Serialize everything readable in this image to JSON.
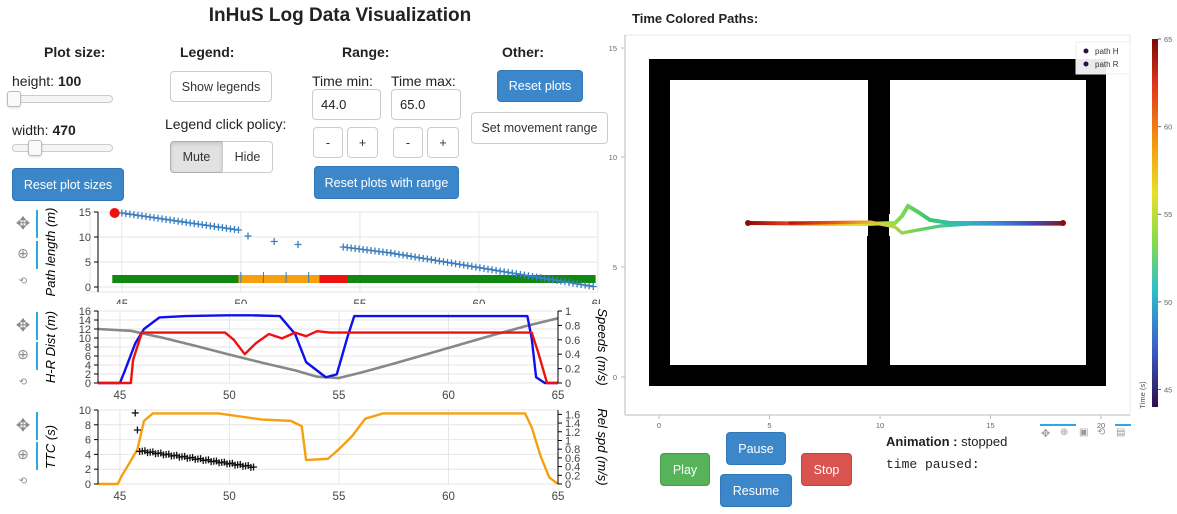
{
  "header": {
    "title": "InHuS Log Data Visualization"
  },
  "plot_size": {
    "label": "Plot size:",
    "height_label": "height: ",
    "height_value": "100",
    "width_label": "width: ",
    "width_value": "470",
    "reset_label": "Reset plot sizes"
  },
  "legend": {
    "label": "Legend:",
    "show_label": "Show legends",
    "policy_label": "Legend click policy:",
    "mute_label": "Mute",
    "hide_label": "Hide"
  },
  "range": {
    "label": "Range:",
    "tmin_label": "Time min:",
    "tmin_value": "44.0",
    "tmax_label": "Time max:",
    "tmax_value": "65.0",
    "minus": "-",
    "plus": "+",
    "reset_label": "Reset plots with range"
  },
  "other": {
    "label": "Other:",
    "reset_label": "Reset plots",
    "movement_label": "Set movement range"
  },
  "paths": {
    "title": "Time Colored Paths:",
    "legend": [
      "path H",
      "path R"
    ],
    "colorbar_label": "Time (s)",
    "colorbar_ticks": [
      "65",
      "60",
      "55",
      "50",
      "45"
    ],
    "colorbar_range": [
      44,
      65
    ],
    "x_ticks": [
      "0",
      "5",
      "10",
      "15",
      "20"
    ],
    "y_ticks": [
      "15",
      "10",
      "5",
      "0"
    ]
  },
  "animation": {
    "label": "Animation : ",
    "status": "stopped",
    "time_label": "time paused:",
    "play": "Play",
    "pause": "Pause",
    "resume": "Resume",
    "stop": "Stop"
  },
  "chart_data": [
    {
      "type": "scatter",
      "ylabel": "Path length (m)",
      "xlim": [
        44,
        65
      ],
      "ylim": [
        -1,
        15
      ],
      "x_ticks": [
        "45",
        "50",
        "55",
        "60",
        "65"
      ],
      "y_ticks": [
        "15",
        "10",
        "5",
        "0"
      ],
      "colors": {
        "points": "#3a7fc0",
        "start": "#ee1111",
        "bar_green": "#118811",
        "bar_orange": "#f5a010",
        "bar_red": "#ee1111"
      },
      "start_marker": {
        "x": 44.7,
        "y": 14.8
      },
      "segments": [
        {
          "x": [
            45.0,
            49.9
          ],
          "y": [
            14.8,
            11.4
          ]
        },
        {
          "x": [
            54.3,
            56.3
          ],
          "y": [
            8.0,
            6.8
          ]
        },
        {
          "x": [
            56.3,
            64.8
          ],
          "y": [
            6.8,
            0.1
          ]
        }
      ],
      "isolated_points": [
        {
          "x": 50.3,
          "y": 10.2
        },
        {
          "x": 51.4,
          "y": 9.1
        },
        {
          "x": 52.4,
          "y": 8.5
        }
      ],
      "status_bar": [
        {
          "from": 44.6,
          "to": 49.9,
          "state": "green"
        },
        {
          "from": 49.9,
          "to": 53.3,
          "state": "orange"
        },
        {
          "from": 53.3,
          "to": 54.5,
          "state": "red"
        },
        {
          "from": 54.5,
          "to": 64.9,
          "state": "green"
        }
      ]
    },
    {
      "type": "line",
      "ylabel": "H-R Dist (m)",
      "y2label": "Speeds (m/s)",
      "xlim": [
        44,
        65
      ],
      "ylim": [
        0,
        16
      ],
      "y2lim": [
        0,
        1
      ],
      "x_ticks": [
        "45",
        "50",
        "55",
        "60",
        "65"
      ],
      "y_ticks": [
        "16",
        "14",
        "12",
        "10",
        "8",
        "6",
        "4",
        "2",
        "0"
      ],
      "y2_ticks": [
        "1",
        "0.8",
        "0.6",
        "0.4",
        "0.2",
        "0"
      ],
      "series": [
        {
          "color": "#888888",
          "x": [
            44.0,
            45.5,
            47.0,
            48.5,
            50.0,
            51.5,
            53.0,
            54.0,
            55.0,
            56.0,
            57.5,
            59.0,
            60.5,
            62.0,
            63.5,
            65.0
          ],
          "y": [
            12.0,
            11.6,
            10.0,
            8.2,
            6.3,
            4.5,
            2.8,
            1.4,
            1.1,
            2.3,
            4.3,
            6.4,
            8.5,
            10.6,
            12.6,
            14.4
          ]
        },
        {
          "color": "#1010ee",
          "x": [
            44.0,
            45.0,
            45.2,
            45.7,
            46.1,
            46.8,
            48.0,
            49.9,
            51.0,
            52.3,
            53.0,
            53.5,
            54.4,
            54.9,
            55.4,
            55.7,
            63.6,
            63.8,
            64.0,
            64.4,
            65.0
          ],
          "y": [
            0.0,
            0.0,
            0.15,
            0.55,
            0.75,
            0.91,
            0.93,
            0.94,
            0.94,
            0.93,
            0.68,
            0.29,
            0.08,
            0.12,
            0.65,
            0.93,
            0.93,
            0.62,
            0.08,
            0.0,
            0.0
          ]
        },
        {
          "color": "#ee1111",
          "x": [
            44.0,
            45.5,
            45.6,
            46.0,
            46.6,
            49.8,
            50.2,
            50.7,
            51.2,
            51.8,
            52.4,
            53.0,
            53.5,
            54.0,
            54.6,
            55.4,
            63.8,
            64.1,
            64.5,
            65.0
          ],
          "y": [
            0.0,
            0.0,
            0.32,
            0.7,
            0.7,
            0.7,
            0.6,
            0.4,
            0.55,
            0.68,
            0.62,
            0.7,
            0.65,
            0.72,
            0.7,
            0.7,
            0.7,
            0.42,
            0.0,
            0.0
          ]
        }
      ]
    },
    {
      "type": "line",
      "ylabel": "TTC (s)",
      "y2label": "Rel spd (m/s)",
      "xlim": [
        44,
        65
      ],
      "ylim": [
        0,
        10
      ],
      "y2lim": [
        0,
        1.7
      ],
      "x_ticks": [
        "45",
        "50",
        "55",
        "60",
        "65"
      ],
      "y_ticks": [
        "10",
        "8",
        "6",
        "4",
        "2",
        "0"
      ],
      "y2_ticks": [
        "1.6",
        "1.4",
        "1.2",
        "1",
        "0.8",
        "0.6",
        "0.4",
        "0.2",
        "0"
      ],
      "series": [
        {
          "color": "#f5a010",
          "x": [
            44.0,
            44.9,
            45.1,
            45.4,
            45.8,
            46.1,
            46.5,
            49.5,
            51.5,
            52.8,
            53.3,
            53.5,
            54.5,
            55.0,
            55.6,
            56.2,
            57.0,
            63.5,
            63.8,
            64.2,
            64.6,
            65.0
          ],
          "y": [
            0.0,
            0.0,
            0.2,
            0.45,
            0.8,
            1.45,
            1.62,
            1.62,
            1.48,
            1.45,
            1.33,
            0.55,
            0.58,
            0.8,
            1.1,
            1.5,
            1.62,
            1.62,
            1.3,
            0.65,
            0.15,
            0.0
          ]
        }
      ],
      "marker_segment": {
        "color": "#111111",
        "x": [
          45.9,
          51.1
        ],
        "y": [
          4.5,
          2.3
        ]
      },
      "isolated_points": [
        {
          "x": 45.7,
          "y": 9.6
        },
        {
          "x": 45.8,
          "y": 7.3
        }
      ]
    }
  ]
}
